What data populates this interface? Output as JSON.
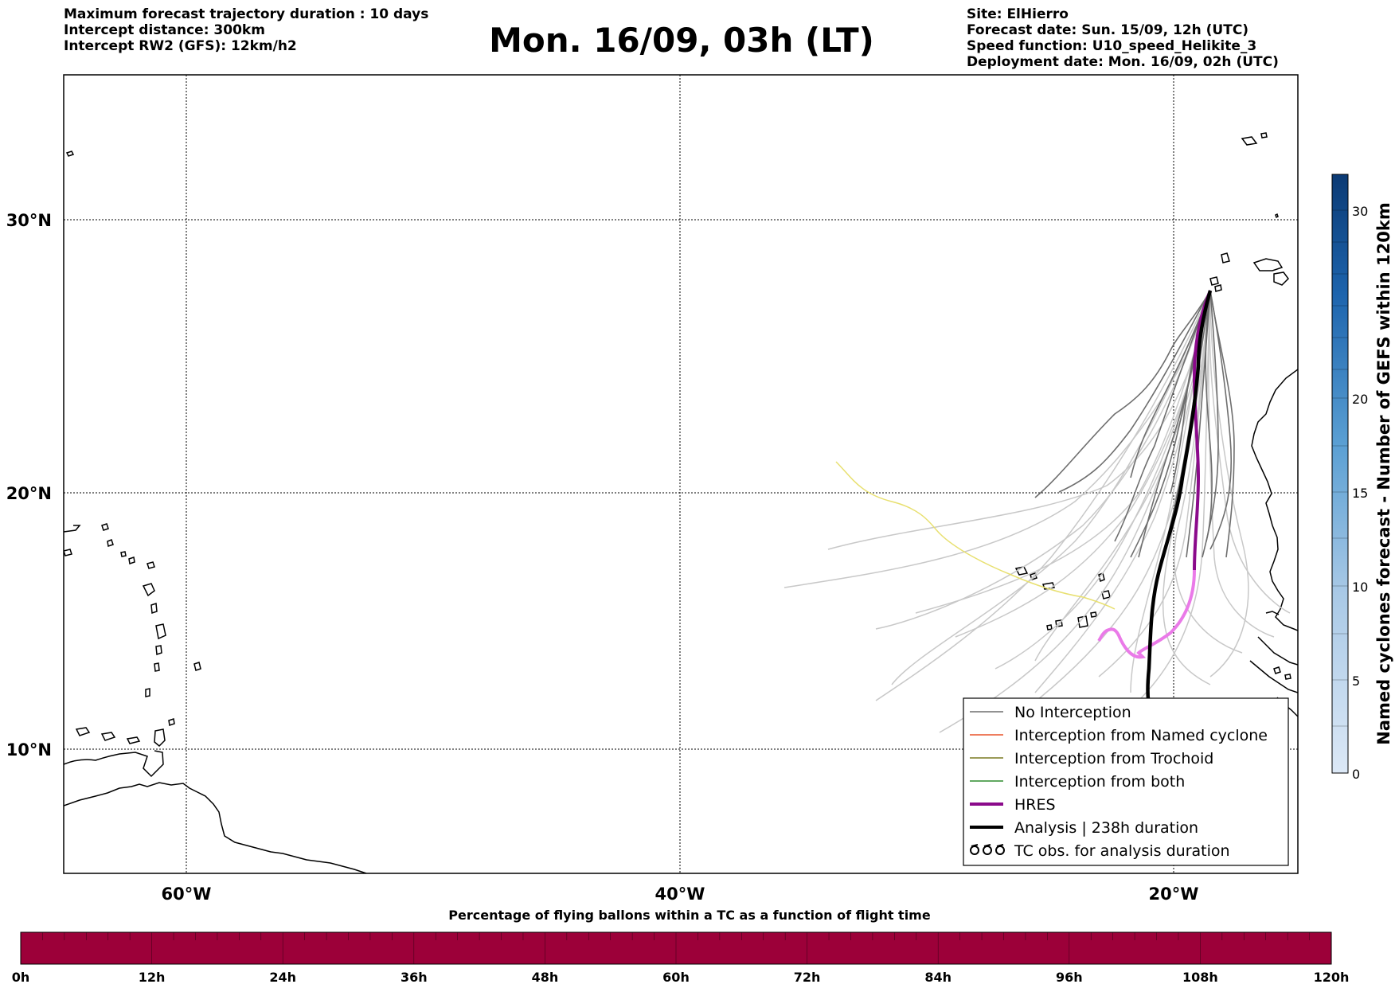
{
  "header": {
    "left": [
      "Maximum forecast trajectory duration : 10 days",
      "Intercept distance: 300km",
      "Intercept RW2 (GFS):  12km/h2"
    ],
    "title": "Mon. 16/09, 03h (LT)",
    "right": [
      "Site: ElHierro",
      "Forecast date: Sun. 15/09, 12h (UTC)",
      "Speed function: U10_speed_Helikite_3",
      "Deployment date: Mon. 16/09, 02h (UTC)"
    ]
  },
  "map": {
    "lat_labels": [
      "30°N",
      "20°N",
      "10°N"
    ],
    "lon_labels": [
      "60°W",
      "40°W",
      "20°W"
    ]
  },
  "legend": {
    "items": [
      {
        "label": "No Interception",
        "color": "#6e6e6e",
        "style": "thin"
      },
      {
        "label": "Interception from Named cyclone",
        "color": "#e8542a",
        "style": "thin"
      },
      {
        "label": "Interception from Trochoid",
        "color": "#7a7a20",
        "style": "thin"
      },
      {
        "label": "Interception from both",
        "color": "#2e8b2e",
        "style": "thin"
      },
      {
        "label": "HRES",
        "color": "#8b0a8b",
        "style": "thick"
      },
      {
        "label": "Analysis | 238h duration",
        "color": "#000000",
        "style": "thick"
      },
      {
        "label": "TC obs. for analysis duration",
        "color": "#000000",
        "style": "symbol"
      }
    ]
  },
  "colorbar": {
    "label": "Named cyclones forecast - Number of GEFS within 120km",
    "ticks": [
      "30",
      "20",
      "15",
      "10",
      "5",
      "0"
    ]
  },
  "timebar": {
    "title": "Percentage of flying ballons within a TC as a function of flight time",
    "ticks": [
      "0h",
      "12h",
      "24h",
      "36h",
      "48h",
      "60h",
      "72h",
      "84h",
      "96h",
      "108h",
      "120h"
    ],
    "fill_color": "#9c0039"
  }
}
